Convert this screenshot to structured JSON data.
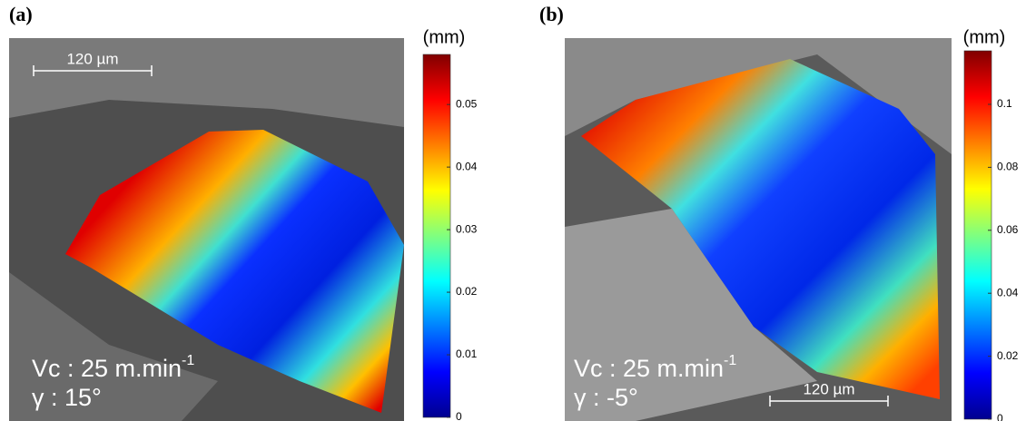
{
  "panels": [
    {
      "label": "(a)",
      "scale_bar": "120 µm",
      "speed": "Vc : 25 m.min",
      "speed_exponent": "-1",
      "angle": "γ : 15°",
      "colorbar": {
        "unit": "(mm)",
        "lim": [
          0,
          0.058
        ],
        "ticks": [
          0,
          0.01,
          0.02,
          0.03,
          0.04,
          0.05
        ]
      }
    },
    {
      "label": "(b)",
      "scale_bar": "120 µm",
      "speed": "Vc : 25 m.min",
      "speed_exponent": "-1",
      "angle": "γ : -5°",
      "colorbar": {
        "unit": "(mm)",
        "lim": [
          0,
          0.117
        ],
        "ticks": [
          0,
          0.02,
          0.04,
          0.06,
          0.08,
          0.1
        ]
      }
    }
  ]
}
